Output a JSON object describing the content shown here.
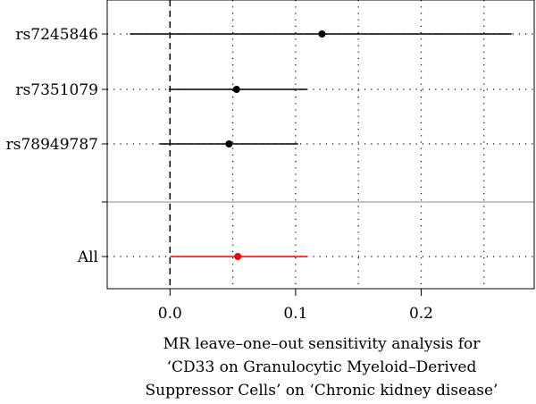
{
  "chart_data": {
    "type": "forest",
    "title": "",
    "xlabel_lines": [
      "MR leave–one–out sensitivity analysis for",
      "‘CD33 on Granulocytic Myeloid–Derived",
      "Suppressor Cells’ on ‘Chronic kidney disease’"
    ],
    "ylabel": "",
    "xlim": [
      -0.05,
      0.29
    ],
    "xticks": [
      0.0,
      0.1,
      0.2
    ],
    "xtick_labels": [
      "0.0",
      "0.1",
      "0.2"
    ],
    "reference_line_x": 0,
    "grid": "dotted",
    "snps": [
      {
        "label": "rs7245846",
        "estimate": 0.121,
        "lower": -0.032,
        "upper": 0.272
      },
      {
        "label": "rs7351079",
        "estimate": 0.053,
        "lower": -0.001,
        "upper": 0.109
      },
      {
        "label": "rs78949787",
        "estimate": 0.047,
        "lower": -0.008,
        "upper": 0.102
      }
    ],
    "overall": {
      "label": "All",
      "estimate": 0.054,
      "lower": 0.0,
      "upper": 0.109
    },
    "colors": {
      "snp": "#000000",
      "overall": "#ff0000",
      "grid": "#000000",
      "separator": "#888888"
    }
  }
}
